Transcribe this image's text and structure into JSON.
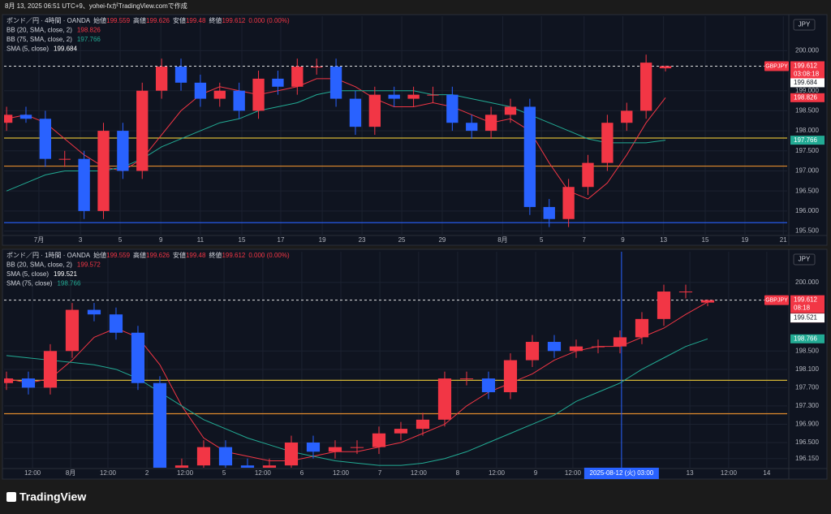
{
  "caption": "8月 13, 2025 06:51 UTC+9、yohei-fxがTradingView.comで作成",
  "footer": "TradingView",
  "chart_data": [
    {
      "type": "candlestick",
      "title": "ポンド／円 · 4時間 · OANDA",
      "currency": "JPY",
      "symbol": "GBPJPY",
      "countdown": "03:08:18",
      "ohlc": [
        {
          "label": "始値",
          "value": 199.559
        },
        {
          "label": "高値",
          "value": 199.626
        },
        {
          "label": "安値",
          "value": 199.48
        },
        {
          "label": "終値",
          "value": 199.612
        }
      ],
      "change": "0.000 (0.00%)",
      "indicators": [
        {
          "name": "BB (20, SMA, close, 2)",
          "value": 198.826,
          "color": "#f23645"
        },
        {
          "name": "BB (75, SMA, close, 2)",
          "value": 197.766,
          "color": "#22ab94"
        },
        {
          "name": "SMA (5, close)",
          "value": 199.684,
          "color": "#ffffff"
        }
      ],
      "up_color": "#f23645",
      "down_color": "#2962ff",
      "open": [
        198.2,
        198.4,
        198.3,
        197.3,
        197.3,
        196.0,
        198.0,
        197.0,
        199.0,
        199.6,
        199.2,
        198.8,
        199.0,
        198.5,
        199.3,
        199.1,
        199.6,
        199.6,
        198.8,
        198.1,
        198.9,
        198.8,
        198.9,
        198.9,
        198.2,
        198.0,
        198.4,
        198.6,
        196.1,
        195.8,
        196.6,
        197.2,
        198.2,
        198.5,
        199.559
      ],
      "high": [
        198.6,
        198.6,
        198.5,
        197.5,
        197.5,
        198.2,
        198.2,
        199.2,
        199.8,
        199.8,
        199.4,
        199.2,
        199.2,
        199.5,
        199.5,
        199.8,
        199.8,
        199.8,
        199.0,
        199.1,
        199.1,
        199.1,
        199.1,
        199.1,
        198.4,
        198.6,
        198.8,
        198.8,
        196.3,
        196.8,
        197.4,
        198.4,
        198.7,
        199.9,
        199.626
      ],
      "low": [
        198.0,
        198.2,
        197.1,
        197.1,
        195.8,
        195.8,
        196.8,
        196.8,
        198.8,
        199.0,
        198.6,
        198.6,
        198.3,
        198.3,
        198.9,
        198.9,
        199.4,
        198.6,
        197.9,
        197.9,
        198.6,
        198.6,
        198.7,
        198.0,
        197.8,
        197.8,
        198.2,
        195.9,
        195.6,
        195.6,
        196.4,
        197.0,
        198.0,
        198.3,
        199.48
      ],
      "close": [
        198.4,
        198.3,
        197.3,
        197.3,
        196.0,
        198.0,
        197.0,
        199.0,
        199.6,
        199.2,
        198.8,
        199.0,
        198.5,
        199.3,
        199.1,
        199.6,
        199.6,
        198.8,
        198.1,
        198.9,
        198.8,
        198.9,
        198.9,
        198.2,
        198.0,
        198.4,
        198.6,
        196.1,
        195.8,
        196.6,
        197.2,
        198.2,
        198.5,
        199.7,
        199.612
      ],
      "lines": [
        {
          "color": "#f23645",
          "values": [
            198.3,
            198.4,
            198.2,
            197.8,
            197.4,
            197.1,
            197.0,
            197.3,
            197.9,
            198.5,
            198.9,
            199.1,
            199.0,
            198.9,
            199.0,
            199.1,
            199.3,
            199.3,
            199.1,
            198.8,
            198.6,
            198.6,
            198.7,
            198.6,
            198.4,
            198.2,
            198.3,
            198.0,
            197.2,
            196.5,
            196.3,
            196.7,
            197.4,
            198.2,
            198.826
          ]
        },
        {
          "color": "#22ab94",
          "values": [
            196.5,
            196.7,
            196.9,
            197.0,
            197.0,
            197.0,
            197.1,
            197.3,
            197.6,
            197.8,
            198.0,
            198.2,
            198.3,
            198.5,
            198.6,
            198.7,
            198.9,
            199.0,
            199.0,
            199.0,
            199.0,
            199.0,
            198.9,
            198.9,
            198.8,
            198.7,
            198.6,
            198.4,
            198.2,
            198.0,
            197.8,
            197.7,
            197.7,
            197.7,
            197.766
          ]
        }
      ],
      "levels": [
        {
          "value": 197.82,
          "color": "#d4b534"
        },
        {
          "value": 197.12,
          "color": "#e08a2c"
        },
        {
          "value": 195.71,
          "color": "#2962ff"
        }
      ],
      "xlim": [
        -0.13,
        40.28
      ],
      "xticks": [
        {
          "value": 1.67,
          "label": "7月"
        },
        {
          "value": 3.81,
          "label": "3"
        },
        {
          "value": 5.86,
          "label": "5"
        },
        {
          "value": 7.96,
          "label": "9"
        },
        {
          "value": 10.0,
          "label": "11"
        },
        {
          "value": 12.14,
          "label": "15"
        },
        {
          "value": 14.15,
          "label": "17"
        },
        {
          "value": 16.29,
          "label": "19"
        },
        {
          "value": 18.34,
          "label": "23"
        },
        {
          "value": 20.39,
          "label": "25"
        },
        {
          "value": 22.48,
          "label": "29"
        },
        {
          "value": 25.6,
          "label": "8月"
        },
        {
          "value": 27.6,
          "label": "5"
        },
        {
          "value": 29.8,
          "label": "7"
        },
        {
          "value": 31.8,
          "label": "9"
        },
        {
          "value": 33.9,
          "label": "13"
        },
        {
          "value": 36.05,
          "label": "15"
        },
        {
          "value": 38.1,
          "label": "19"
        },
        {
          "value": 40.08,
          "label": "21"
        }
      ],
      "ylim": [
        195.41,
        200.857
      ],
      "yticks": [
        {
          "value": 195.5,
          "label": "195.500"
        },
        {
          "value": 196,
          "label": "196.000"
        },
        {
          "value": 196.5,
          "label": "196.500"
        },
        {
          "value": 197,
          "label": "197.000"
        },
        {
          "value": 197.5,
          "label": "197.500"
        },
        {
          "value": 198,
          "label": "198.000"
        },
        {
          "value": 198.5,
          "label": "198.500"
        },
        {
          "value": 199,
          "label": "199.000"
        },
        {
          "value": 200,
          "label": "200.000"
        }
      ]
    },
    {
      "type": "candlestick",
      "title": "ポンド／円 · 1時間 · OANDA",
      "currency": "JPY",
      "symbol": "GBPJPY",
      "countdown": "08:18",
      "ohlc": [
        {
          "label": "始値",
          "value": 199.559
        },
        {
          "label": "高値",
          "value": 199.626
        },
        {
          "label": "安値",
          "value": 199.48
        },
        {
          "label": "終値",
          "value": 199.612
        }
      ],
      "change": "0.000 (0.00%)",
      "indicators": [
        {
          "name": "BB (20, SMA, close, 2)",
          "value": 199.572,
          "color": "#f23645"
        },
        {
          "name": "SMA (5, close)",
          "value": 199.521,
          "color": "#ffffff"
        },
        {
          "name": "SMA (75, close)",
          "value": 198.766,
          "color": "#22ab94"
        }
      ],
      "up_color": "#f23645",
      "down_color": "#2962ff",
      "open": [
        197.8,
        197.9,
        197.7,
        198.5,
        199.4,
        199.3,
        198.9,
        197.8,
        195.9,
        196.0,
        196.4,
        196.0,
        195.9,
        196.0,
        196.5,
        196.3,
        196.4,
        196.4,
        196.7,
        196.8,
        197.0,
        197.9,
        197.9,
        197.6,
        198.3,
        198.7,
        198.5,
        198.6,
        198.6,
        198.8,
        199.2,
        199.8,
        199.559
      ],
      "high": [
        198.05,
        198.05,
        198.65,
        199.55,
        199.55,
        199.45,
        199.05,
        197.95,
        196.15,
        196.55,
        196.55,
        196.15,
        196.15,
        196.65,
        196.65,
        196.55,
        196.55,
        196.85,
        196.95,
        197.15,
        198.05,
        198.05,
        198.05,
        198.45,
        198.85,
        198.85,
        198.75,
        198.75,
        198.95,
        199.35,
        199.95,
        199.95,
        199.626
      ],
      "low": [
        197.65,
        197.55,
        197.55,
        198.35,
        199.15,
        198.75,
        197.65,
        195.75,
        195.75,
        195.85,
        195.85,
        195.75,
        195.75,
        195.85,
        196.15,
        196.15,
        196.25,
        196.25,
        196.55,
        196.65,
        196.85,
        197.75,
        197.45,
        197.45,
        198.15,
        198.35,
        198.35,
        198.45,
        198.45,
        198.65,
        199.05,
        199.65,
        199.48
      ],
      "close": [
        197.9,
        197.7,
        198.5,
        199.4,
        199.3,
        198.9,
        197.8,
        195.9,
        196.0,
        196.4,
        196.0,
        195.9,
        196.0,
        196.5,
        196.3,
        196.4,
        196.4,
        196.7,
        196.8,
        197.0,
        197.9,
        197.9,
        197.6,
        198.3,
        198.7,
        198.5,
        198.6,
        198.6,
        198.8,
        199.2,
        199.8,
        199.8,
        199.612
      ],
      "lines": [
        {
          "color": "#f23645",
          "values": [
            197.9,
            197.8,
            197.9,
            198.3,
            198.8,
            199.0,
            198.8,
            198.2,
            197.3,
            196.6,
            196.3,
            196.2,
            196.1,
            196.1,
            196.2,
            196.3,
            196.3,
            196.4,
            196.5,
            196.7,
            196.9,
            197.3,
            197.6,
            197.8,
            198.0,
            198.3,
            198.5,
            198.6,
            198.6,
            198.8,
            199.0,
            199.3,
            199.572
          ]
        },
        {
          "color": "#22ab94",
          "values": [
            198.4,
            198.35,
            198.3,
            198.25,
            198.2,
            198.1,
            197.9,
            197.6,
            197.3,
            197.0,
            196.8,
            196.6,
            196.45,
            196.3,
            196.2,
            196.1,
            196.05,
            196.0,
            196.0,
            196.05,
            196.15,
            196.3,
            196.5,
            196.7,
            196.9,
            197.1,
            197.4,
            197.6,
            197.8,
            198.1,
            198.35,
            198.6,
            198.766
          ]
        }
      ],
      "levels": [
        {
          "value": 197.86,
          "color": "#d4b534"
        },
        {
          "value": 197.13,
          "color": "#e08a2c"
        }
      ],
      "crosshair": {
        "value": 28.07,
        "label": "2025-08-12 (火)   03:00"
      },
      "xlim": [
        -0.11,
        35.63
      ],
      "xticks": [
        {
          "value": 1.19,
          "label": "12:00"
        },
        {
          "value": 2.93,
          "label": "8月"
        },
        {
          "value": 4.63,
          "label": "12:00"
        },
        {
          "value": 6.41,
          "label": "2"
        },
        {
          "value": 8.15,
          "label": "12:00"
        },
        {
          "value": 9.93,
          "label": "5"
        },
        {
          "value": 11.7,
          "label": "12:00"
        },
        {
          "value": 13.48,
          "label": "6"
        },
        {
          "value": 15.26,
          "label": "12:00"
        },
        {
          "value": 17.04,
          "label": "7"
        },
        {
          "value": 18.81,
          "label": "12:00"
        },
        {
          "value": 20.59,
          "label": "8"
        },
        {
          "value": 22.37,
          "label": "12:00"
        },
        {
          "value": 24.15,
          "label": "9"
        },
        {
          "value": 25.85,
          "label": "12:00"
        },
        {
          "value": 31.19,
          "label": "13"
        },
        {
          "value": 32.96,
          "label": "12:00"
        },
        {
          "value": 34.7,
          "label": "14"
        }
      ],
      "ylim": [
        195.95,
        200.67
      ],
      "yticks": [
        {
          "value": 196.15,
          "label": "196.150"
        },
        {
          "value": 196.5,
          "label": "196.500"
        },
        {
          "value": 196.9,
          "label": "196.900"
        },
        {
          "value": 197.3,
          "label": "197.300"
        },
        {
          "value": 197.7,
          "label": "197.700"
        },
        {
          "value": 198.1,
          "label": "198.100"
        },
        {
          "value": 198.5,
          "label": "198.500"
        },
        {
          "value": 200,
          "label": "200.000"
        }
      ]
    }
  ]
}
